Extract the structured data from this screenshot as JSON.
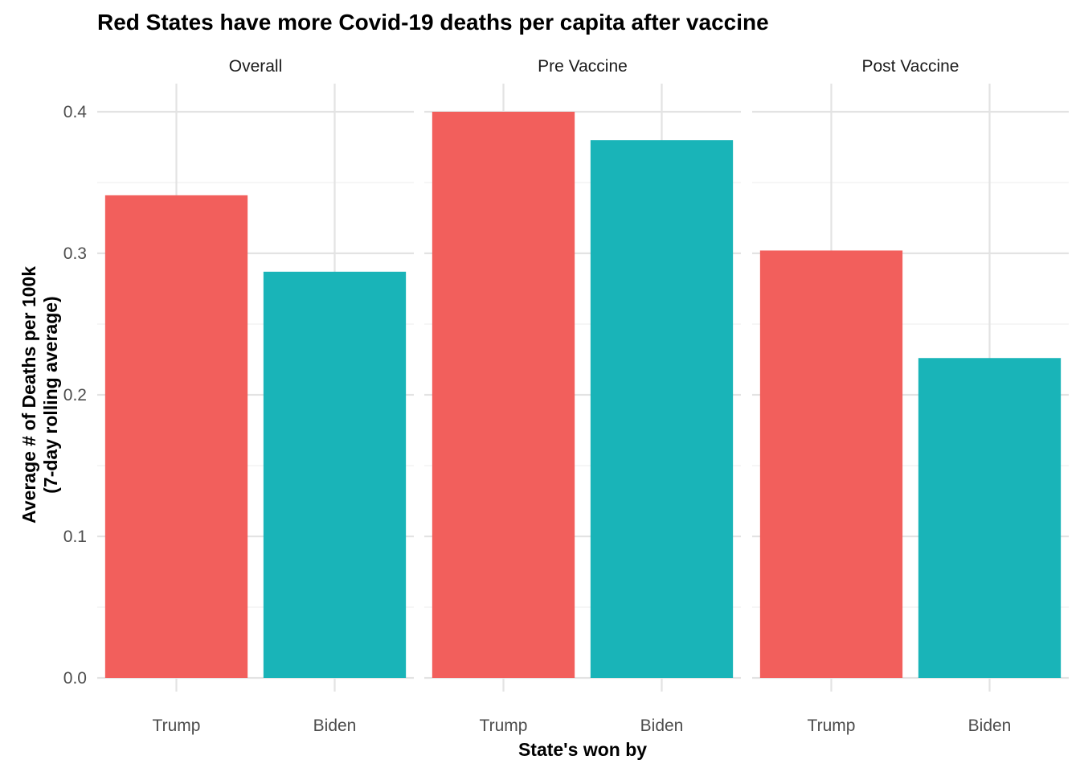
{
  "chart_data": {
    "type": "bar",
    "title": "Red States have more Covid-19 deaths per capita after vaccine",
    "xlabel": "State's won by",
    "ylabel": [
      "Average # of Deaths per 100k",
      "(7-day rolling average)"
    ],
    "ylim": [
      0,
      0.4
    ],
    "yticks": [
      "0.0",
      "0.1",
      "0.2",
      "0.3",
      "0.4"
    ],
    "categories": [
      "Trump",
      "Biden"
    ],
    "facets": [
      {
        "name": "Overall",
        "values": [
          0.341,
          0.287
        ]
      },
      {
        "name": "Pre Vaccine",
        "values": [
          0.4,
          0.38
        ]
      },
      {
        "name": "Post Vaccine",
        "values": [
          0.302,
          0.226
        ]
      }
    ],
    "colors": {
      "Trump": "#f25f5c",
      "Biden": "#19b4b8"
    },
    "grid": true,
    "legend": "none"
  }
}
